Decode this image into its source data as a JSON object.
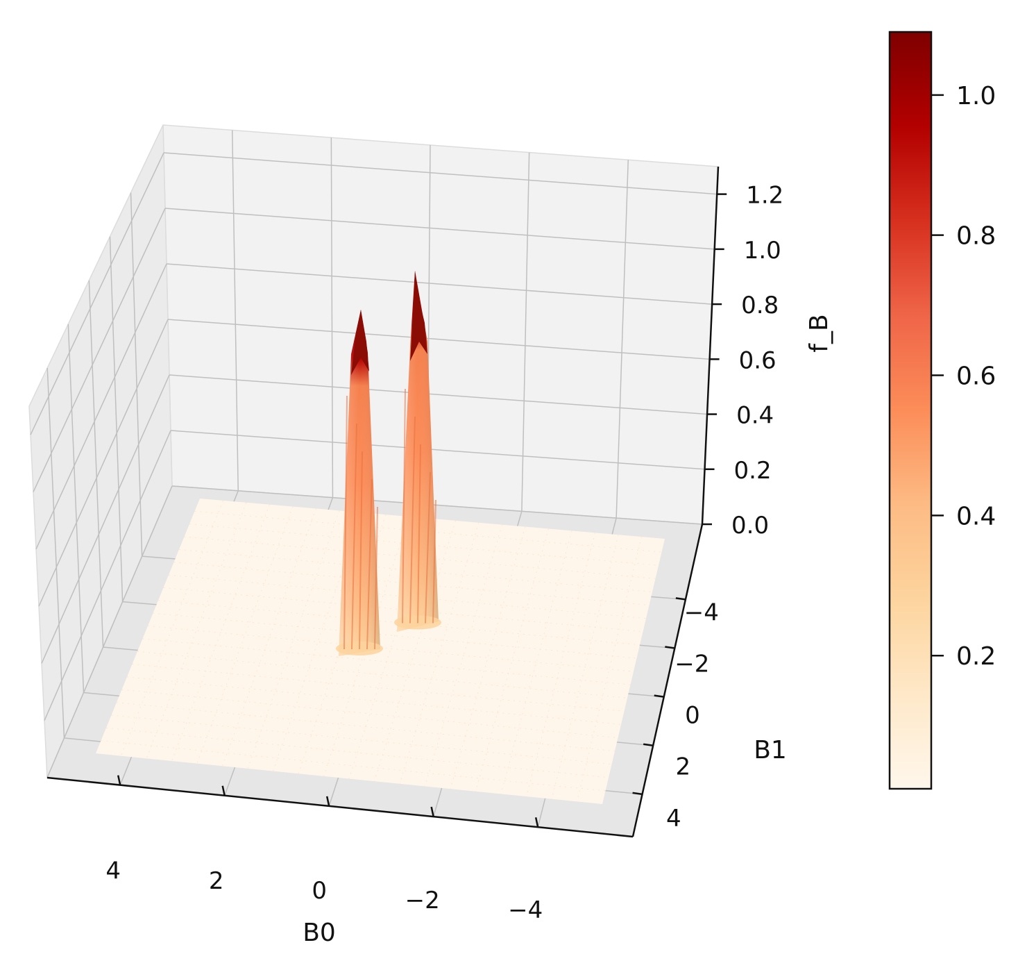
{
  "chart_data": {
    "type": "surface3d",
    "colormap": "OrRd",
    "xlabel": "B0",
    "ylabel": "B1",
    "zlabel": "f_B",
    "x_ticks": [
      "4",
      "2",
      "0",
      "−2",
      "−4"
    ],
    "y_ticks": [
      "−4",
      "−2",
      "0",
      "2",
      "4"
    ],
    "z_ticks": [
      "0.0",
      "0.2",
      "0.4",
      "0.6",
      "0.8",
      "1.0",
      "1.2"
    ],
    "xlim": [
      -5,
      5
    ],
    "ylim": [
      -5,
      5
    ],
    "zlim": [
      0,
      1.3
    ],
    "grid": true,
    "series": [
      {
        "values": [
          {
            "b0": 0.25,
            "b1": -1.25,
            "z": 1.0
          },
          {
            "b0": -0.9,
            "b1": -2.2,
            "z": 1.07
          }
        ]
      }
    ],
    "colorbar": {
      "ticks": [
        "0.2",
        "0.4",
        "0.6",
        "0.8",
        "1.0"
      ],
      "range": [
        0.01,
        1.09
      ]
    }
  }
}
